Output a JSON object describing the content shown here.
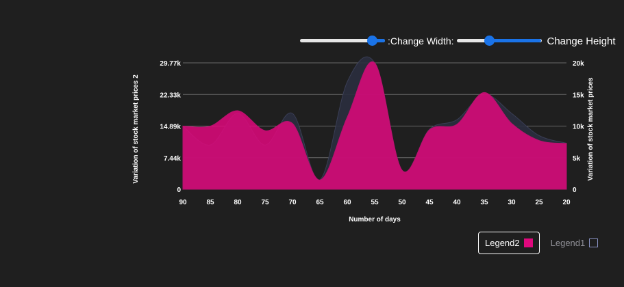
{
  "controls": {
    "width_label": ":Change Width:",
    "height_label": "Change Height",
    "width_value": 0.85,
    "height_value": 0.39
  },
  "chart_data": {
    "type": "area",
    "title": "",
    "xlabel": "Number of days",
    "ylabel_left": "Variation of stock market prices 2",
    "ylabel_right": "Variation of stock market prices",
    "x": [
      90,
      85,
      80,
      75,
      70,
      65,
      60,
      55,
      50,
      45,
      40,
      35,
      30,
      25,
      20
    ],
    "x_ticks": [
      "90",
      "85",
      "80",
      "75",
      "70",
      "65",
      "60",
      "55",
      "50",
      "45",
      "40",
      "35",
      "30",
      "25",
      "20"
    ],
    "y_left_ticks": [
      "0",
      "7.44k",
      "14.89k",
      "22.33k",
      "29.77k"
    ],
    "y_left_range": [
      0,
      29770
    ],
    "y_right_ticks": [
      "0",
      "5k",
      "10k",
      "15k",
      "20k"
    ],
    "y_right_range": [
      0,
      20000
    ],
    "grid": true,
    "legend_position": "bottom-right",
    "series": [
      {
        "name": "Legend1",
        "axis": "right",
        "color": "#2a2d3e",
        "values": [
          10000,
          7000,
          12000,
          7000,
          12000,
          1500,
          17000,
          20000,
          3000,
          9500,
          11000,
          15000,
          12000,
          8500,
          7300
        ]
      },
      {
        "name": "Legend2",
        "axis": "left",
        "color": "#e0087d",
        "values": [
          14890,
          14890,
          18500,
          13800,
          15500,
          2200,
          17000,
          29770,
          4500,
          14000,
          15300,
          22800,
          15500,
          11500,
          10800
        ]
      }
    ]
  },
  "legend": [
    {
      "label": "Legend2",
      "color": "#e0087d",
      "active": true
    },
    {
      "label": "Legend1",
      "color": "#8a93c4",
      "active": false
    }
  ]
}
